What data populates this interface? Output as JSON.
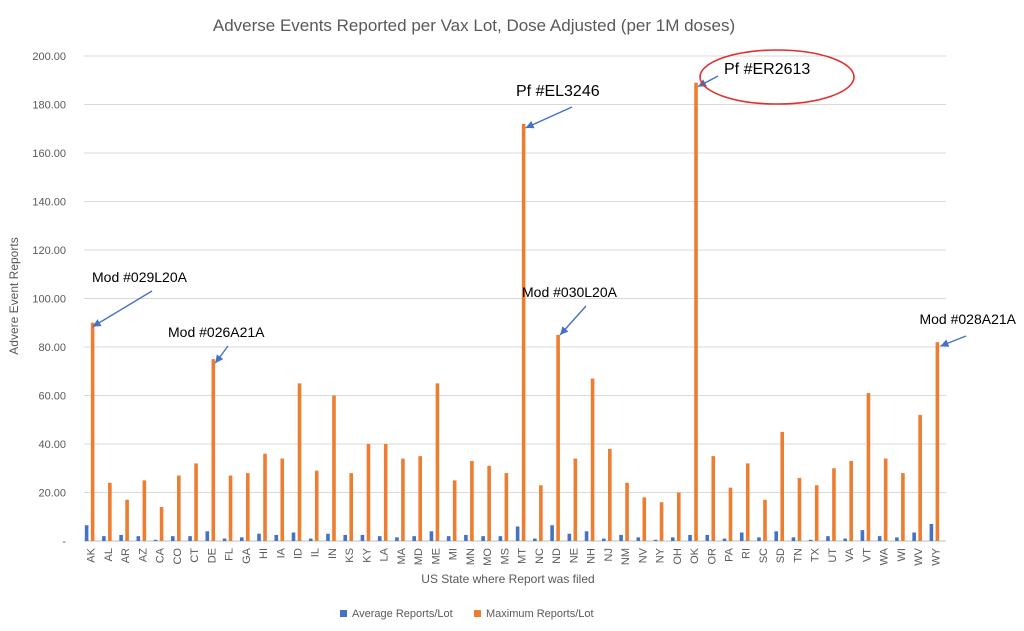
{
  "chart_data": {
    "type": "bar",
    "title": "Adverse Events Reported per Vax Lot, Dose Adjusted (per 1M doses)",
    "xlabel": "US State where Report was filed",
    "ylabel": "Advere Event Reports",
    "ylim": [
      0,
      200
    ],
    "yticks": [
      "-",
      "20.00",
      "40.00",
      "60.00",
      "80.00",
      "100.00",
      "120.00",
      "140.00",
      "160.00",
      "180.00",
      "200.00"
    ],
    "grid": true,
    "legend_position": "bottom",
    "categories": [
      "AK",
      "AL",
      "AR",
      "AZ",
      "CA",
      "CO",
      "CT",
      "DE",
      "FL",
      "GA",
      "HI",
      "IA",
      "ID",
      "IL",
      "IN",
      "KS",
      "KY",
      "LA",
      "MA",
      "MD",
      "ME",
      "MI",
      "MN",
      "MO",
      "MS",
      "MT",
      "NC",
      "ND",
      "NE",
      "NH",
      "NJ",
      "NM",
      "NV",
      "NY",
      "OH",
      "OK",
      "OR",
      "PA",
      "RI",
      "SC",
      "SD",
      "TN",
      "TX",
      "UT",
      "VA",
      "VT",
      "WA",
      "WI",
      "WV",
      "WY"
    ],
    "series": [
      {
        "name": "Average Reports/Lot",
        "color": "#4472C4",
        "values": [
          6.5,
          2,
          2.5,
          2,
          0.5,
          2,
          2,
          4,
          1,
          1.5,
          3,
          2.5,
          3.5,
          1,
          3,
          2.5,
          2.5,
          2,
          1.5,
          2,
          4,
          2,
          2.5,
          2,
          2,
          6,
          1,
          6.5,
          3,
          4,
          1,
          2.5,
          1.5,
          0.5,
          1.5,
          2.5,
          2.5,
          1,
          3.5,
          1.5,
          4,
          1.5,
          0.5,
          2,
          1,
          4.5,
          2,
          1.5,
          3.5,
          7
        ]
      },
      {
        "name": "Maximum Reports/Lot",
        "color": "#ED7D31",
        "values": [
          90,
          24,
          17,
          25,
          14,
          27,
          32,
          75,
          27,
          28,
          36,
          34,
          65,
          29,
          60,
          28,
          40,
          40,
          34,
          35,
          65,
          25,
          33,
          31,
          28,
          172,
          23,
          85,
          34,
          67,
          38,
          24,
          18,
          16,
          20,
          189,
          35,
          22,
          32,
          17,
          45,
          26,
          23,
          30,
          33,
          61,
          34,
          28,
          52,
          82
        ]
      }
    ],
    "annotations": [
      {
        "text": "Mod #029L20A",
        "category": "AK"
      },
      {
        "text": "Mod #026A21A",
        "category": "DE"
      },
      {
        "text": "Pf #EL3246",
        "category": "MT"
      },
      {
        "text": "Mod #030L20A",
        "category": "ND"
      },
      {
        "text": "Pf #ER2613",
        "category": "OK",
        "highlight": "circled"
      },
      {
        "text": "Mod #028A21A",
        "category": "WY"
      }
    ]
  }
}
